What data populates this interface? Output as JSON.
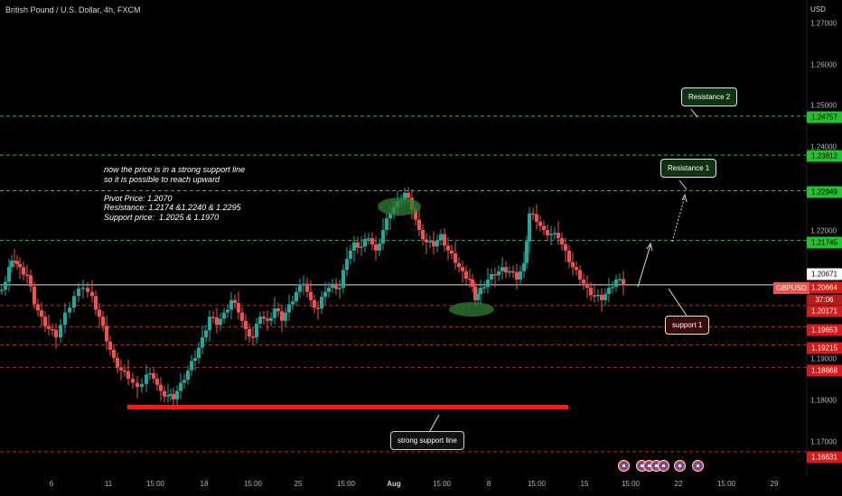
{
  "header": {
    "title": "British Pound / U.S. Dollar, 4h, FXCM",
    "currency": "USD"
  },
  "note_lines": [
    "now the price is in a strong support line",
    "so it is possible to reach upward",
    "",
    "Pivot Price: 1.2070",
    "Resistance: 1.2174 &1.2240 & 1.2295",
    "Support price:  1.2025 & 1.1970"
  ],
  "price_axis": [
    "1.27000",
    "1.26000",
    "1.25000",
    "1.24000",
    "1.22000",
    "1.19000",
    "1.18000",
    "1.17000"
  ],
  "level_labels": {
    "r1": "1.24757",
    "r2": "1.23812",
    "r3": "1.22949",
    "r4": "1.21745",
    "last": "1.20671",
    "current": "1.20664",
    "countdown": "37:06",
    "s1": "1.20171",
    "s2": "1.19653",
    "s3": "1.19215",
    "s4": "1.18668",
    "s5": "1.16631"
  },
  "symbol": "GBPUSD",
  "time_axis": [
    "6",
    "11",
    "15:00",
    "18",
    "15:00",
    "25",
    "15:00",
    "Aug",
    "15:00",
    "8",
    "15:00",
    "15",
    "15:00",
    "22",
    "15:00",
    "29"
  ],
  "callouts": {
    "resistance2": "Resistance 2",
    "resistance1": "Resistance 1",
    "support1": "support 1",
    "strong_support": "strong support line"
  },
  "colors": {
    "up": "#26a69a",
    "down": "#ef5350",
    "green_line": "#22c22e",
    "red_line": "#d71b1b",
    "support_bar": "#ff1a1a"
  },
  "chart_data": {
    "type": "candlestick",
    "title": "British Pound / U.S. Dollar, 4h, FXCM",
    "ylabel": "USD",
    "ylim": [
      1.16,
      1.275
    ],
    "resistance_levels": [
      1.24757,
      1.23812,
      1.22949,
      1.21745
    ],
    "support_levels": [
      1.20171,
      1.19653,
      1.19215,
      1.18668,
      1.16631
    ],
    "pivot": 1.2067,
    "strong_support": 1.177,
    "close_path": [
      [
        0,
        1.2055
      ],
      [
        8,
        1.211
      ],
      [
        14,
        1.2125
      ],
      [
        20,
        1.211
      ],
      [
        28,
        1.209
      ],
      [
        36,
        1.202
      ],
      [
        44,
        1.199
      ],
      [
        52,
        1.196
      ],
      [
        60,
        1.194
      ],
      [
        70,
        1.2
      ],
      [
        80,
        1.204
      ],
      [
        90,
        1.206
      ],
      [
        100,
        1.204
      ],
      [
        108,
        1.199
      ],
      [
        116,
        1.193
      ],
      [
        124,
        1.189
      ],
      [
        132,
        1.186
      ],
      [
        140,
        1.184
      ],
      [
        150,
        1.182
      ],
      [
        160,
        1.185
      ],
      [
        168,
        1.184
      ],
      [
        176,
        1.181
      ],
      [
        184,
        1.18
      ],
      [
        190,
        1.179
      ],
      [
        198,
        1.183
      ],
      [
        206,
        1.186
      ],
      [
        214,
        1.189
      ],
      [
        222,
        1.194
      ],
      [
        230,
        1.199
      ],
      [
        238,
        1.197
      ],
      [
        246,
        1.2
      ],
      [
        254,
        1.203
      ],
      [
        262,
        1.2
      ],
      [
        270,
        1.196
      ],
      [
        278,
        1.194
      ],
      [
        286,
        1.199
      ],
      [
        294,
        1.198
      ],
      [
        302,
        1.201
      ],
      [
        310,
        1.198
      ],
      [
        318,
        1.202
      ],
      [
        326,
        1.205
      ],
      [
        334,
        1.207
      ],
      [
        342,
        1.203
      ],
      [
        350,
        1.201
      ],
      [
        358,
        1.205
      ],
      [
        366,
        1.207
      ],
      [
        374,
        1.206
      ],
      [
        382,
        1.213
      ],
      [
        390,
        1.217
      ],
      [
        398,
        1.216
      ],
      [
        406,
        1.218
      ],
      [
        414,
        1.215
      ],
      [
        422,
        1.22
      ],
      [
        430,
        1.224
      ],
      [
        438,
        1.227
      ],
      [
        446,
        1.229
      ],
      [
        454,
        1.225
      ],
      [
        462,
        1.22
      ],
      [
        470,
        1.217
      ],
      [
        478,
        1.216
      ],
      [
        486,
        1.219
      ],
      [
        494,
        1.215
      ],
      [
        502,
        1.212
      ],
      [
        510,
        1.21
      ],
      [
        518,
        1.208
      ],
      [
        524,
        1.203
      ],
      [
        530,
        1.206
      ],
      [
        538,
        1.208
      ],
      [
        546,
        1.209
      ],
      [
        554,
        1.211
      ],
      [
        562,
        1.21
      ],
      [
        570,
        1.208
      ],
      [
        578,
        1.212
      ],
      [
        584,
        1.224
      ],
      [
        592,
        1.222
      ],
      [
        600,
        1.22
      ],
      [
        608,
        1.219
      ],
      [
        616,
        1.218
      ],
      [
        624,
        1.215
      ],
      [
        632,
        1.211
      ],
      [
        640,
        1.208
      ],
      [
        648,
        1.206
      ],
      [
        656,
        1.204
      ],
      [
        664,
        1.203
      ],
      [
        672,
        1.206
      ],
      [
        680,
        1.208
      ],
      [
        688,
        1.2066
      ]
    ]
  }
}
